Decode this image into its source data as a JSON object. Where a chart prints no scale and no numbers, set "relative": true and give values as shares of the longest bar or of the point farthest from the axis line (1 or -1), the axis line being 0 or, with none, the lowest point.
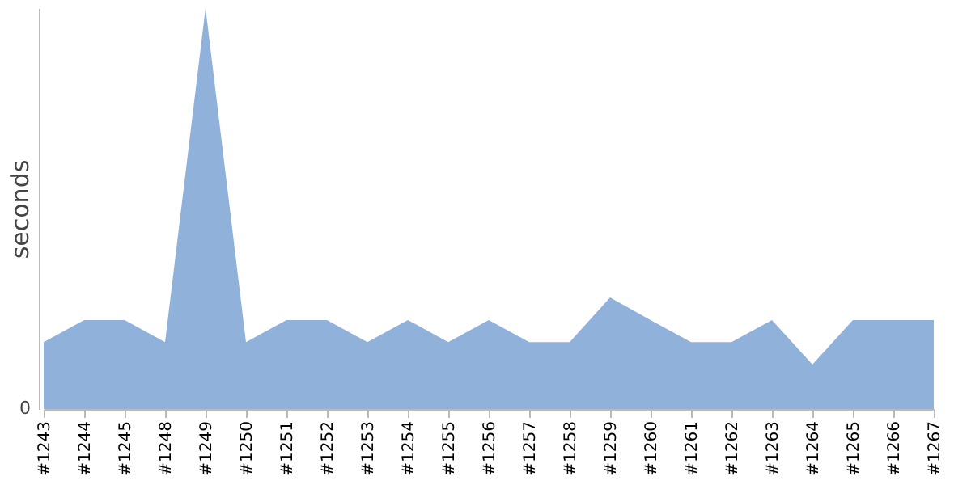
{
  "chart_data": {
    "type": "area",
    "ylabel": "seconds",
    "relative": true,
    "annotations": [
      "0"
    ],
    "grid": false,
    "legend": false,
    "categories": [
      "#1243",
      "#1244",
      "#1245",
      "#1248",
      "#1249",
      "#1250",
      "#1251",
      "#1252",
      "#1253",
      "#1254",
      "#1255",
      "#1256",
      "#1257",
      "#1258",
      "#1259",
      "#1260",
      "#1261",
      "#1262",
      "#1263",
      "#1264",
      "#1265",
      "#1266",
      "#1267"
    ],
    "series": [
      {
        "color": "#8fb1da",
        "values": [
          0.167,
          0.222,
          0.222,
          0.167,
          1,
          0.167,
          0.222,
          0.222,
          0.167,
          0.222,
          0.167,
          0.222,
          0.167,
          0.167,
          0.278,
          0.222,
          0.167,
          0.167,
          0.222,
          0.111,
          0.222,
          0.222,
          0.222
        ]
      }
    ]
  }
}
